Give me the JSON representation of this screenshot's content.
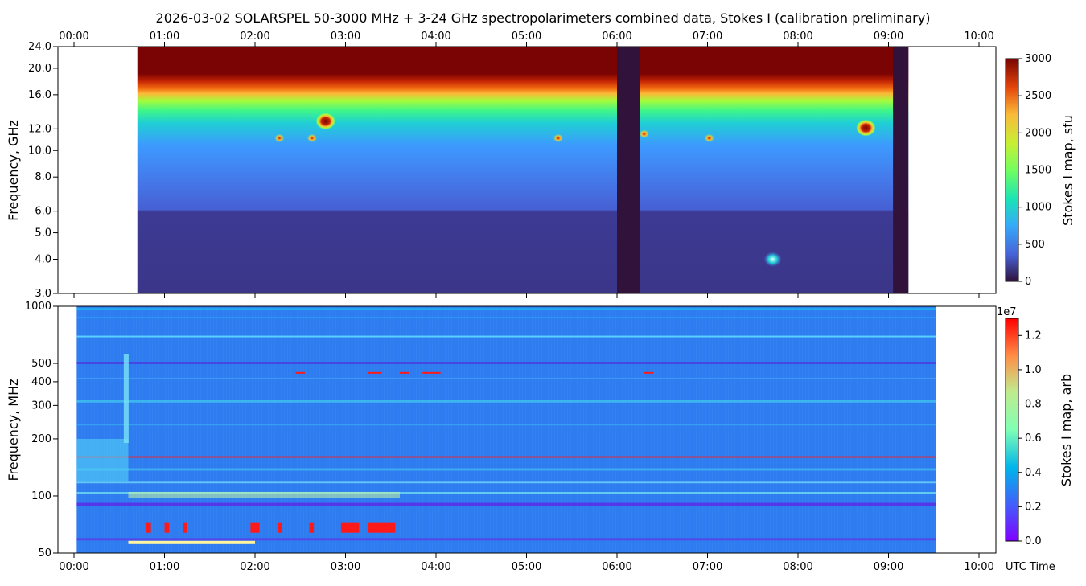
{
  "title": "2026-03-02  SOLARSPEL  50-3000 MHz  +  3-24 GHz  spectropolarimeters combined data,  Stokes I  (calibration preliminary)",
  "time_ticks": [
    "00:00",
    "01:00",
    "02:00",
    "03:00",
    "04:00",
    "05:00",
    "06:00",
    "07:00",
    "08:00",
    "09:00",
    "10:00"
  ],
  "utc_label": "UTC Time",
  "chart_data": [
    {
      "type": "heatmap",
      "name": "upper-panel",
      "ylabel": "Frequency, GHz",
      "y_scale": "log",
      "ylim": [
        3.0,
        24.0
      ],
      "y_ticks": [
        "24.0",
        "20.0",
        "16.0",
        "12.0",
        "10.0",
        "8.0",
        "6.0",
        "5.0",
        "4.0",
        "3.0"
      ],
      "y_tick_values": [
        24,
        20,
        16,
        12,
        10,
        8,
        6,
        5,
        4,
        3
      ],
      "x_range_hours": [
        0,
        10.33
      ],
      "data_start_hour": 0.7,
      "data_end_hour": 9.22,
      "gaps_hours": [
        [
          6.0,
          6.25
        ],
        [
          9.05,
          9.22
        ]
      ],
      "bright_spots": [
        {
          "hour": 2.78,
          "ghz": 12.8
        },
        {
          "hour": 8.75,
          "ghz": 12.1
        },
        {
          "hour": 2.27,
          "ghz": 11.1
        },
        {
          "hour": 2.63,
          "ghz": 11.1
        },
        {
          "hour": 5.35,
          "ghz": 11.1
        },
        {
          "hour": 6.3,
          "ghz": 11.5
        },
        {
          "hour": 7.02,
          "ghz": 11.1
        },
        {
          "hour": 7.72,
          "ghz": 4.0
        }
      ],
      "colorbar": {
        "label": "Stokes I map, sfu",
        "min": 0,
        "max": 3000,
        "ticks": [
          "3000",
          "2500",
          "2000",
          "1500",
          "1000",
          "500",
          "0"
        ],
        "tick_values": [
          3000,
          2500,
          2000,
          1500,
          1000,
          500,
          0
        ],
        "colormap": "turbo"
      }
    },
    {
      "type": "heatmap",
      "name": "lower-panel",
      "ylabel": "Frequency, MHz",
      "y_scale": "log",
      "ylim": [
        50,
        1000
      ],
      "y_ticks": [
        "1000",
        "500",
        "400",
        "300",
        "200",
        "100",
        "50"
      ],
      "y_tick_values": [
        1000,
        500,
        400,
        300,
        200,
        100,
        50
      ],
      "x_range_hours": [
        0,
        10.33
      ],
      "data_start_hour": 0.03,
      "data_end_hour": 9.52,
      "colorbar": {
        "label": "Stokes I map, arb",
        "multiplier": "1e7",
        "min": 0.0,
        "max": 1.3,
        "ticks": [
          "1.2",
          "1.0",
          "0.8",
          "0.6",
          "0.4",
          "0.2",
          "0.0"
        ],
        "tick_values": [
          1.2,
          1.0,
          0.8,
          0.6,
          0.4,
          0.2,
          0.0
        ],
        "colormap": "rainbow"
      }
    }
  ],
  "colors": {
    "dark_red": "#7a0403",
    "deep_blue": "#30123b",
    "mid_blue": "#3a5bd0",
    "lower_bg": "#2f7bf0",
    "hot": "#ff1a1a"
  }
}
